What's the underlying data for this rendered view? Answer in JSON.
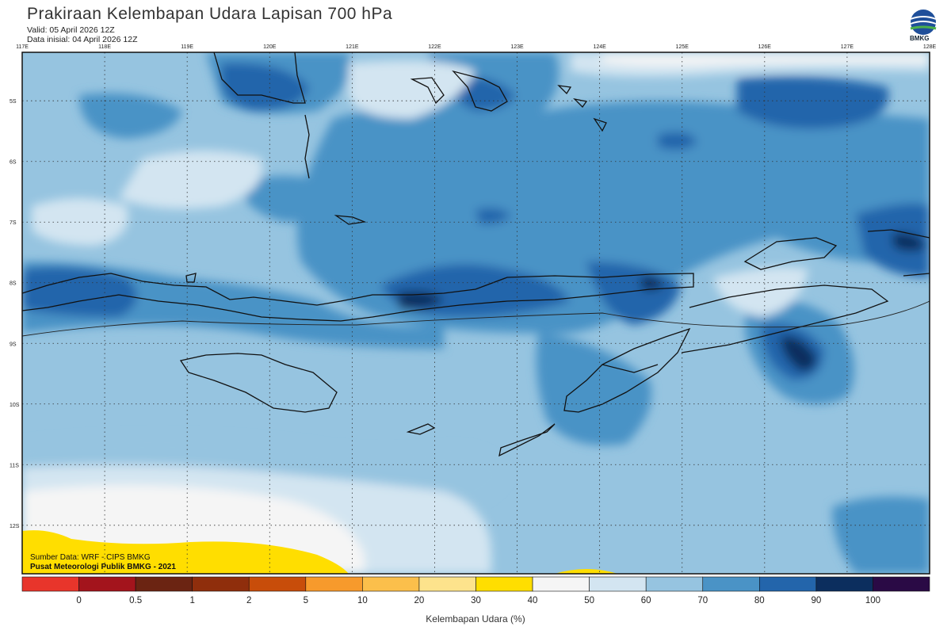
{
  "header": {
    "title": "Prakiraan Kelembapan Udara Lapisan 700 hPa",
    "valid": "Valid: 05 April 2026 12Z",
    "init": "Data inisial: 04 April 2026 12Z"
  },
  "logo": {
    "label": "BMKG",
    "icon": "bmkg-globe-icon"
  },
  "map": {
    "lon_range": [
      117,
      128
    ],
    "lat_range": [
      -12.8,
      -4.2
    ],
    "lon_labels": [
      "117E",
      "118E",
      "119E",
      "120E",
      "121E",
      "122E",
      "123E",
      "124E",
      "125E",
      "126E",
      "127E",
      "128E"
    ],
    "lat_labels": [
      "5S",
      "6S",
      "7S",
      "8S",
      "9S",
      "10S",
      "11S",
      "12S"
    ],
    "grid": true
  },
  "legend": {
    "title": "Kelembapan Udara (%)",
    "ticks": [
      "0",
      "0.5",
      "1",
      "2",
      "5",
      "10",
      "20",
      "30",
      "40",
      "50",
      "60",
      "70",
      "80",
      "90",
      "100"
    ],
    "colors": [
      "#e8352b",
      "#a3141c",
      "#6b2412",
      "#8f2e0c",
      "#c84d0a",
      "#f79a2c",
      "#fbbf4b",
      "#fde38c",
      "#ffde00",
      "#f5f5f5",
      "#d3e5f1",
      "#96c4e0",
      "#4a93c6",
      "#2365ab",
      "#0c2e5e",
      "#2a0a45"
    ]
  },
  "footer": {
    "source": "Sumber Data: WRF - CIPS BMKG",
    "org": "Pusat Meteorologi Publik BMKG - 2021"
  }
}
